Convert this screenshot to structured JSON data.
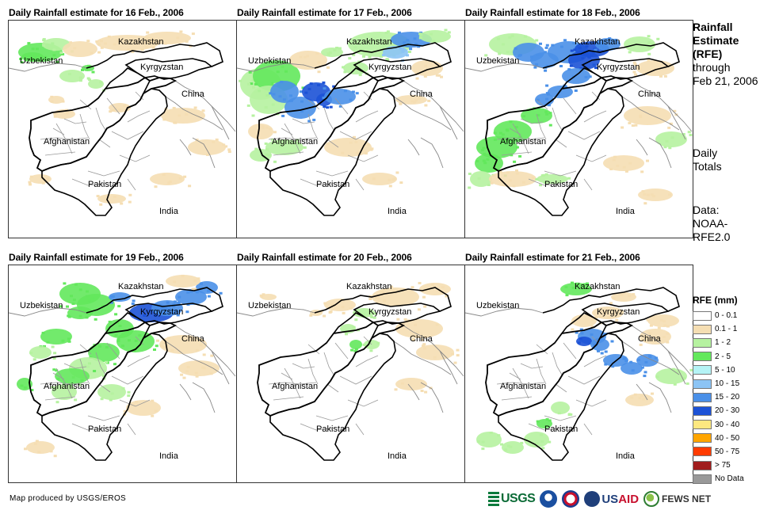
{
  "panels": [
    {
      "title": "Daily Rainfall estimate for 16 Feb., 2006",
      "rain": "light-north"
    },
    {
      "title": "Daily Rainfall estimate for 17 Feb., 2006",
      "rain": "heavy-northwest"
    },
    {
      "title": "Daily Rainfall estimate for 18 Feb., 2006",
      "rain": "band-northeast"
    },
    {
      "title": "Daily Rainfall estimate for 19 Feb., 2006",
      "rain": "broad-north"
    },
    {
      "title": "Daily Rainfall estimate for 20 Feb., 2006",
      "rain": "scattered-light"
    },
    {
      "title": "Daily Rainfall estimate for 21 Feb., 2006",
      "rain": "east-band"
    }
  ],
  "country_labels": {
    "kazakhstan": "Kazakhstan",
    "uzbekistan": "Uzbekistan",
    "kyrgyzstan": "Kyrgyzstan",
    "china": "China",
    "afghanistan": "Afghanistan",
    "pakistan": "Pakistan",
    "india": "India"
  },
  "side": {
    "title_bold": [
      "Rainfall",
      "Estimate",
      "(RFE)"
    ],
    "title_normal": [
      "through",
      "Feb 21, 2006"
    ],
    "daily": [
      "Daily",
      "Totals"
    ],
    "data": [
      "Data:",
      "NOAA-",
      "RFE2.0"
    ]
  },
  "legend": {
    "title": "RFE (mm)",
    "items": [
      {
        "label": "0 - 0.1",
        "color": "#ffffff"
      },
      {
        "label": "0.1 - 1",
        "color": "#f5deb3"
      },
      {
        "label": "1 - 2",
        "color": "#b6f2a0"
      },
      {
        "label": "2 - 5",
        "color": "#63e85c"
      },
      {
        "label": "5 - 10",
        "color": "#b5f3f5"
      },
      {
        "label": "10 - 15",
        "color": "#8cc4f5"
      },
      {
        "label": "15 - 20",
        "color": "#4a90e8"
      },
      {
        "label": "20 - 30",
        "color": "#1c52d6"
      },
      {
        "label": "30 - 40",
        "color": "#fde880"
      },
      {
        "label": "40 - 50",
        "color": "#ffa500"
      },
      {
        "label": "50 - 75",
        "color": "#ff3b00"
      },
      {
        "label": "> 75",
        "color": "#a01c1c"
      },
      {
        "label": "No Data",
        "color": "#999999"
      }
    ]
  },
  "credit": "Map produced by USGS/EROS",
  "logos": {
    "usgs": "USGS",
    "usaid_prefix": "US",
    "usaid_suffix": "AID",
    "fews": "FEWS NET"
  }
}
